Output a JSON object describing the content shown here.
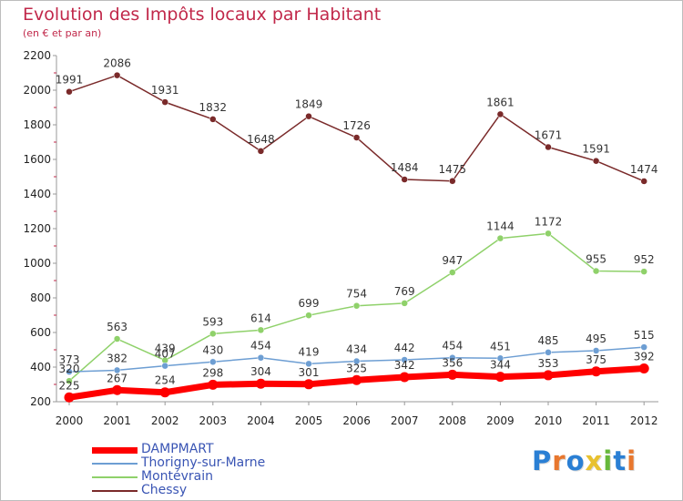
{
  "header": {
    "title": "Evolution des Impôts locaux par Habitant",
    "subtitle": "(en € et par an)"
  },
  "logo": {
    "text": "Proxiti",
    "letter_colors": [
      "#2a7fd4",
      "#e8772e",
      "#2a7fd4",
      "#e8c12e",
      "#67b83a",
      "#2a7fd4",
      "#e8772e"
    ]
  },
  "chart_data": {
    "type": "line",
    "x": [
      "2000",
      "2001",
      "2002",
      "2003",
      "2004",
      "2005",
      "2006",
      "2007",
      "2008",
      "2009",
      "2010",
      "2011",
      "2012"
    ],
    "ylim": [
      200,
      2200
    ],
    "yticks": [
      "200",
      "400",
      "600",
      "800",
      "1000",
      "1200",
      "1400",
      "1600",
      "1800",
      "2000",
      "2200"
    ],
    "grid": false,
    "legend_position": "bottom-left",
    "series": [
      {
        "name": "DAMPMART",
        "color": "#ff0000",
        "values": [
          225,
          267,
          254,
          298,
          304,
          301,
          325,
          342,
          356,
          344,
          353,
          375,
          392
        ],
        "labels": [
          "225",
          "267",
          "254",
          "298",
          "304",
          "301",
          "325",
          "342",
          "356",
          "344",
          "353",
          "375",
          "392"
        ]
      },
      {
        "name": "Thorigny-sur-Marne",
        "color": "#6d9ed3",
        "values": [
          373,
          382,
          407,
          430,
          454,
          419,
          434,
          442,
          454,
          451,
          485,
          495,
          515
        ],
        "labels": [
          "373",
          "382",
          "407",
          "430",
          "454",
          "419",
          "434",
          "442",
          "454",
          "451",
          "485",
          "495",
          "515"
        ]
      },
      {
        "name": "Montévrain",
        "color": "#8fd16a",
        "values": [
          320,
          563,
          439,
          593,
          614,
          699,
          754,
          769,
          947,
          1144,
          1172,
          955,
          952
        ],
        "labels": [
          "320",
          "563",
          "439",
          "593",
          "614",
          "699",
          "754",
          "769",
          "947",
          "1144",
          "1172",
          "955",
          "952"
        ]
      },
      {
        "name": "Chessy",
        "color": "#7a2a2a",
        "values": [
          1991,
          2086,
          1931,
          1832,
          1648,
          1849,
          1726,
          1484,
          1475,
          1861,
          1671,
          1591,
          1474
        ],
        "labels": [
          "1991",
          "2086",
          "1931",
          "1832",
          "1648",
          "1849",
          "1726",
          "1484",
          "1475",
          "1861",
          "1671",
          "1591",
          "1474"
        ]
      }
    ]
  }
}
